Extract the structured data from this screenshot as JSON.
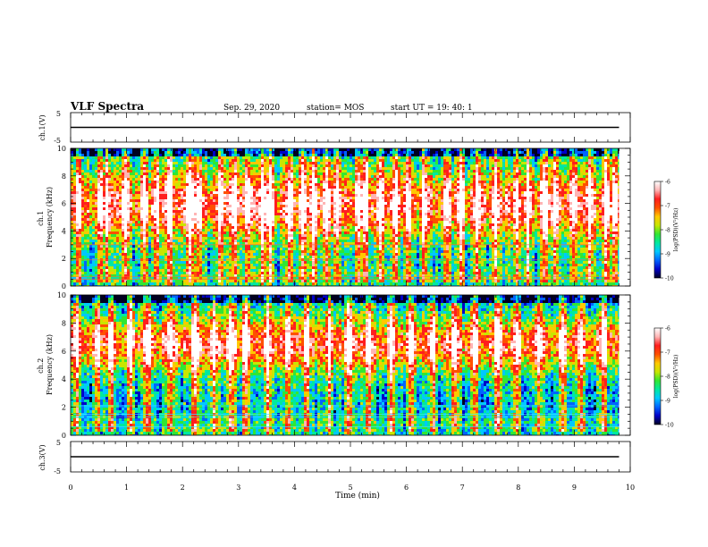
{
  "header": {
    "title": "VLF Spectra",
    "date": "Sep. 29, 2020",
    "station": "station= MOS",
    "start": "start  UT =   19: 40: 1"
  },
  "colors": {
    "colormap": [
      "#000020",
      "#0000c8",
      "#0064ff",
      "#00c8ff",
      "#00e8a0",
      "#32e632",
      "#c8e600",
      "#ffc800",
      "#ff5000",
      "#ff1e1e",
      "#ffb4b4",
      "#ffffff"
    ],
    "line": "#000000"
  },
  "chart_data": [
    {
      "type": "line",
      "panel": "ch1-waveform",
      "ylabel": "ch.1(V)",
      "ylim": [
        -5,
        5
      ],
      "yticks": [
        "5",
        "-5"
      ],
      "xlim": [
        0,
        10
      ],
      "series": [
        {
          "x": [
            0,
            9.8
          ],
          "y": [
            0,
            0
          ]
        }
      ]
    },
    {
      "type": "heatmap",
      "panel": "ch1-spectrogram",
      "ylabel": "ch.1\nFrequency (kHz)",
      "ylim": [
        0,
        10
      ],
      "yticks": [
        "0",
        "2",
        "4",
        "6",
        "8",
        "10"
      ],
      "xlim": [
        0,
        10
      ],
      "data_end_x": 9.8,
      "band_center_khz": 6.0,
      "colorbar": {
        "label": "log(PSD)(V²/Hz)",
        "range": [
          -10,
          -6
        ],
        "ticks": [
          "-6",
          "-7",
          "-8",
          "-9",
          "-10"
        ]
      },
      "bright_streaks_min": [
        0.12,
        0.5,
        0.63,
        0.95,
        1.3,
        1.52,
        1.75,
        2.1,
        2.28,
        2.65,
        2.9,
        3.15,
        3.4,
        3.55,
        3.9,
        4.12,
        4.32,
        4.55,
        4.75,
        5.12,
        5.25,
        5.5,
        5.78,
        6.0,
        6.3,
        6.7,
        6.95,
        7.25,
        7.58,
        7.95,
        8.15,
        8.45,
        8.65,
        8.98,
        9.25,
        9.55,
        9.7
      ]
    },
    {
      "type": "heatmap",
      "panel": "ch2-spectrogram",
      "ylabel": "ch.2\nFrequency (kHz)",
      "ylim": [
        0,
        10
      ],
      "yticks": [
        "0",
        "2",
        "4",
        "6",
        "8",
        "10"
      ],
      "xlim": [
        0,
        10
      ],
      "data_end_x": 9.8,
      "band_center_khz": 6.6,
      "colorbar": {
        "label": "log(PSD)(V²/Hz)",
        "range": [
          -10,
          -6
        ],
        "ticks": [
          "-6",
          "-7",
          "-8",
          "-9",
          "-10"
        ]
      },
      "bright_streaks_min": [
        0.08,
        0.45,
        0.7,
        1.05,
        1.35,
        1.78,
        2.2,
        2.55,
        2.85,
        3.1,
        3.5,
        3.85,
        4.2,
        4.6,
        4.95,
        5.3,
        5.7,
        6.05,
        6.45,
        6.85,
        7.2,
        7.6,
        7.95,
        8.35,
        8.75,
        9.1,
        9.5
      ]
    },
    {
      "type": "line",
      "panel": "ch3-waveform",
      "ylabel": "ch.3(V)",
      "ylim": [
        -5,
        5
      ],
      "yticks": [
        "5",
        "-5"
      ],
      "xlim": [
        0,
        10
      ],
      "xlabel": "Time (min)",
      "xticks": [
        "0",
        "1",
        "2",
        "3",
        "4",
        "5",
        "6",
        "7",
        "8",
        "9",
        "10"
      ],
      "series": [
        {
          "x": [
            0,
            9.8
          ],
          "y": [
            0,
            0
          ]
        }
      ]
    }
  ]
}
